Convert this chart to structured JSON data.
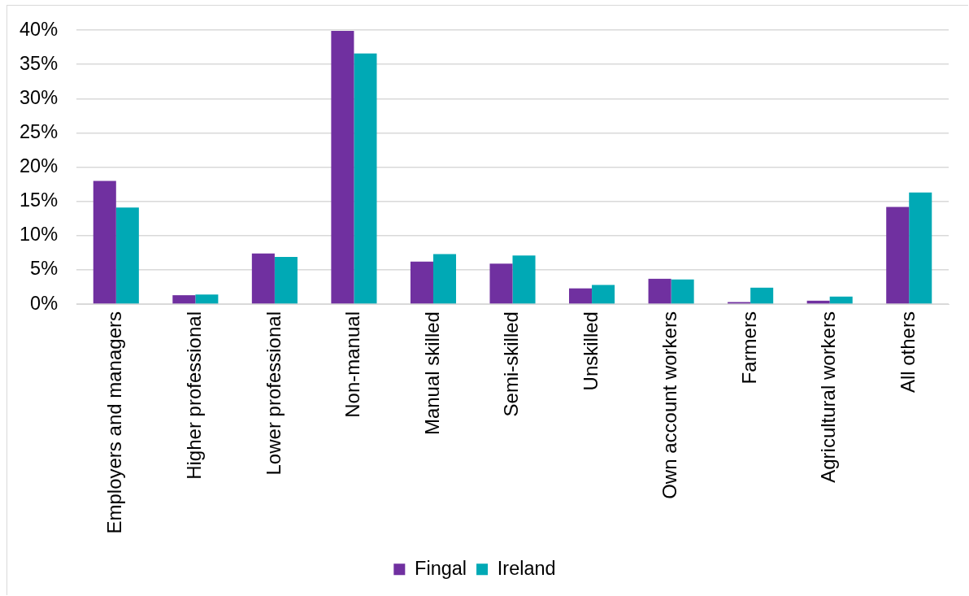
{
  "chart_data": {
    "type": "bar",
    "categories": [
      "Employers and managers",
      "Higher professional",
      "Lower professional",
      "Non-manual",
      "Manual skilled",
      "Semi-skilled",
      "Unskilled",
      "Own account workers",
      "Farmers",
      "Agricultural workers",
      "All others"
    ],
    "series": [
      {
        "name": "Fingal",
        "color": "#7030a0",
        "values": [
          18.0,
          1.3,
          7.4,
          39.9,
          6.2,
          5.9,
          2.3,
          3.7,
          0.3,
          0.5,
          14.2
        ]
      },
      {
        "name": "Ireland",
        "color": "#00a9b5",
        "values": [
          14.1,
          1.4,
          6.9,
          36.6,
          7.3,
          7.1,
          2.8,
          3.6,
          2.4,
          1.1,
          16.3
        ]
      }
    ],
    "ylim": [
      0,
      40
    ],
    "yticks": [
      {
        "value": 0,
        "label": "0%"
      },
      {
        "value": 5,
        "label": "5%"
      },
      {
        "value": 10,
        "label": "10%"
      },
      {
        "value": 15,
        "label": "15%"
      },
      {
        "value": 20,
        "label": "20%"
      },
      {
        "value": 25,
        "label": "25%"
      },
      {
        "value": 30,
        "label": "30%"
      },
      {
        "value": 35,
        "label": "35%"
      },
      {
        "value": 40,
        "label": "40%"
      }
    ],
    "grid": "y",
    "legend": "bottom"
  }
}
